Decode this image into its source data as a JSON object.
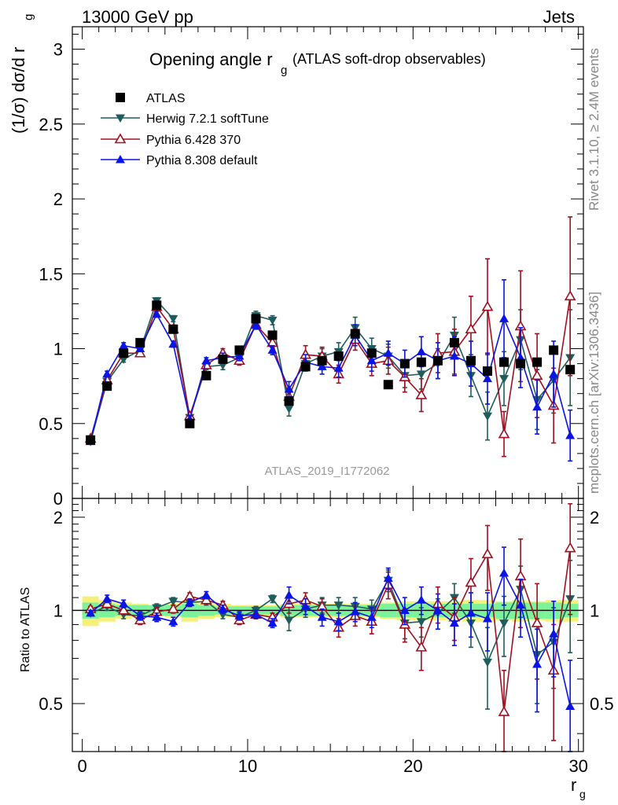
{
  "header": {
    "left_label": "13000 GeV pp",
    "right_label": "Jets"
  },
  "side_labels": {
    "rivet": "Rivet 3.1.10, ≥ 2.4M events",
    "mcplots": "mcplots.cern.ch [arXiv:1306.3436]"
  },
  "watermark": "ATLAS_2019_I1772062",
  "colors": {
    "atlas": "#000000",
    "herwig": "#1f5c5c",
    "pythia6": "#a01020",
    "pythia8": "#0a14e6",
    "band_inner": "#7cf29a",
    "band_outer": "#f6f07a"
  },
  "chart_data": [
    {
      "type": "scatter",
      "panel": "main",
      "title": "Opening angle r",
      "title_sub": "g",
      "title_note": "(ATLAS soft-drop observables)",
      "ylabel": "(1/σ) dσ/d r",
      "ylabel_sub": "g",
      "ylim": [
        0,
        3.15
      ],
      "xlim": [
        -0.6,
        30.3
      ],
      "y_ticks": [
        0,
        0.5,
        1,
        1.5,
        2,
        2.5,
        3
      ],
      "y_tick_labels": [
        "0",
        "0.5",
        "1",
        "1.5",
        "2",
        "2.5",
        "3"
      ],
      "legend_position": "top-left",
      "legend": [
        "ATLAS",
        "Herwig 7.2.1 softTune",
        "Pythia 6.428 370",
        "Pythia 8.308 default"
      ],
      "x": [
        0.5,
        1.5,
        2.5,
        3.5,
        4.5,
        5.5,
        6.5,
        7.5,
        8.5,
        9.5,
        10.5,
        11.5,
        12.5,
        13.5,
        14.5,
        15.5,
        16.5,
        17.5,
        18.5,
        19.5,
        20.5,
        21.5,
        22.5,
        23.5,
        24.5,
        25.5,
        26.5,
        27.5,
        28.5,
        29.5
      ],
      "series": [
        {
          "name": "ATLAS",
          "key": "atlas",
          "marker": "square",
          "values": [
            0.39,
            0.75,
            0.97,
            1.04,
            1.29,
            1.13,
            0.5,
            0.82,
            0.93,
            0.99,
            1.2,
            1.09,
            0.65,
            0.88,
            0.92,
            0.95,
            1.1,
            0.97,
            0.76,
            0.9,
            0.91,
            0.92,
            1.04,
            0.92,
            0.85,
            0.91,
            0.9,
            0.91,
            0.99,
            0.86
          ],
          "errors": [
            0.01,
            0.01,
            0.01,
            0.01,
            0.01,
            0.01,
            0.01,
            0.01,
            0.01,
            0.01,
            0.01,
            0.01,
            0.01,
            0.01,
            0.01,
            0.01,
            0.01,
            0.01,
            0.02,
            0.02,
            0.02,
            0.02,
            0.02,
            0.02,
            0.02,
            0.02,
            0.02,
            0.02,
            0.02,
            0.02
          ]
        },
        {
          "name": "Herwig 7.2.1 softTune",
          "key": "herwig",
          "marker": "triangle-down",
          "values": [
            0.38,
            0.78,
            0.93,
            0.99,
            1.32,
            1.2,
            0.54,
            0.88,
            0.89,
            0.94,
            1.22,
            1.19,
            0.6,
            0.9,
            0.95,
            0.98,
            1.14,
            1.0,
            0.95,
            0.82,
            0.83,
            0.9,
            1.09,
            0.82,
            0.55,
            0.8,
            1.06,
            0.66,
            0.79,
            0.94
          ],
          "errors": [
            0.01,
            0.02,
            0.02,
            0.02,
            0.02,
            0.02,
            0.02,
            0.02,
            0.03,
            0.03,
            0.03,
            0.03,
            0.05,
            0.05,
            0.05,
            0.06,
            0.07,
            0.07,
            0.08,
            0.08,
            0.1,
            0.1,
            0.12,
            0.14,
            0.16,
            0.18,
            0.2,
            0.2,
            0.22,
            0.32
          ]
        },
        {
          "name": "Pythia 6.428 370",
          "key": "pythia6",
          "marker": "triangle-up-open",
          "values": [
            0.4,
            0.79,
            0.97,
            0.97,
            1.28,
            1.13,
            0.55,
            0.89,
            0.97,
            0.92,
            1.16,
            1.04,
            0.68,
            0.96,
            0.95,
            0.83,
            1.06,
            0.9,
            0.92,
            0.81,
            0.69,
            0.97,
            0.98,
            1.13,
            1.28,
            0.43,
            1.15,
            0.82,
            0.62,
            1.35
          ],
          "errors": [
            0.01,
            0.02,
            0.02,
            0.02,
            0.02,
            0.02,
            0.02,
            0.02,
            0.03,
            0.03,
            0.03,
            0.03,
            0.05,
            0.06,
            0.06,
            0.06,
            0.07,
            0.08,
            0.09,
            0.1,
            0.11,
            0.13,
            0.15,
            0.22,
            0.32,
            0.15,
            0.37,
            0.28,
            0.25,
            0.53
          ]
        },
        {
          "name": "Pythia 8.308 default",
          "key": "pythia8",
          "marker": "triangle-up",
          "values": [
            0.38,
            0.83,
            1.02,
            1.0,
            1.23,
            1.03,
            0.53,
            0.92,
            0.94,
            0.95,
            1.16,
            0.99,
            0.73,
            0.91,
            0.88,
            0.87,
            1.09,
            0.92,
            0.97,
            0.9,
            0.98,
            0.92,
            0.95,
            0.9,
            0.8,
            1.2,
            0.94,
            0.61,
            0.83,
            0.42
          ],
          "errors": [
            0.01,
            0.02,
            0.02,
            0.02,
            0.02,
            0.02,
            0.02,
            0.02,
            0.03,
            0.03,
            0.03,
            0.03,
            0.05,
            0.05,
            0.05,
            0.06,
            0.07,
            0.07,
            0.08,
            0.09,
            0.1,
            0.12,
            0.13,
            0.15,
            0.17,
            0.26,
            0.2,
            0.18,
            0.22,
            0.17
          ]
        }
      ]
    },
    {
      "type": "scatter",
      "panel": "ratio",
      "ylabel": "Ratio to ATLAS",
      "xlabel": "r",
      "xlabel_sub": "g",
      "ylim": [
        0.35,
        2.3
      ],
      "xlim": [
        -0.6,
        30.3
      ],
      "y_ticks": [
        0.5,
        1,
        2
      ],
      "y_tick_labels": [
        "0.5",
        "1",
        "2"
      ],
      "x_ticks": [
        0,
        10,
        20,
        30
      ],
      "x_tick_labels": [
        "0",
        "10",
        "20",
        "30"
      ],
      "x": [
        0.5,
        1.5,
        2.5,
        3.5,
        4.5,
        5.5,
        6.5,
        7.5,
        8.5,
        9.5,
        10.5,
        11.5,
        12.5,
        13.5,
        14.5,
        15.5,
        16.5,
        17.5,
        18.5,
        19.5,
        20.5,
        21.5,
        22.5,
        23.5,
        24.5,
        25.5,
        26.5,
        27.5,
        28.5,
        29.5
      ],
      "band_inner": [
        0.06,
        0.05,
        0.04,
        0.04,
        0.04,
        0.04,
        0.05,
        0.04,
        0.03,
        0.03,
        0.03,
        0.03,
        0.04,
        0.04,
        0.04,
        0.04,
        0.04,
        0.04,
        0.05,
        0.05,
        0.05,
        0.05,
        0.05,
        0.05,
        0.05,
        0.06,
        0.06,
        0.06,
        0.06,
        0.05
      ],
      "band_outer": [
        0.11,
        0.08,
        0.06,
        0.05,
        0.04,
        0.05,
        0.08,
        0.06,
        0.05,
        0.04,
        0.04,
        0.04,
        0.05,
        0.05,
        0.05,
        0.05,
        0.05,
        0.05,
        0.06,
        0.07,
        0.07,
        0.07,
        0.07,
        0.08,
        0.08,
        0.07,
        0.08,
        0.07,
        0.08,
        0.08
      ],
      "series": [
        {
          "name": "Herwig 7.2.1 softTune",
          "key": "herwig",
          "marker": "triangle-down",
          "values": [
            0.98,
            1.03,
            0.97,
            0.96,
            1.02,
            1.07,
            1.06,
            1.07,
            0.97,
            0.95,
            1.0,
            1.09,
            0.93,
            1.01,
            1.04,
            1.04,
            1.03,
            1.01,
            1.25,
            0.91,
            0.92,
            0.98,
            1.1,
            0.91,
            0.68,
            0.91,
            1.17,
            0.72,
            0.79,
            1.09
          ],
          "errors": [
            0.02,
            0.03,
            0.03,
            0.03,
            0.03,
            0.03,
            0.03,
            0.03,
            0.03,
            0.03,
            0.03,
            0.03,
            0.07,
            0.06,
            0.06,
            0.06,
            0.07,
            0.07,
            0.1,
            0.1,
            0.1,
            0.11,
            0.12,
            0.15,
            0.2,
            0.2,
            0.22,
            0.22,
            0.23,
            0.36
          ]
        },
        {
          "name": "Pythia 6.428 370",
          "key": "pythia6",
          "marker": "triangle-up-open",
          "values": [
            1.01,
            1.05,
            1.0,
            0.93,
            0.99,
            1.01,
            1.11,
            1.08,
            1.04,
            0.93,
            0.97,
            0.95,
            1.05,
            1.08,
            1.03,
            0.88,
            0.96,
            0.92,
            1.21,
            0.9,
            0.76,
            1.05,
            0.95,
            1.23,
            1.52,
            0.47,
            1.29,
            0.91,
            0.64,
            1.59
          ],
          "errors": [
            0.02,
            0.03,
            0.03,
            0.03,
            0.03,
            0.03,
            0.03,
            0.03,
            0.03,
            0.03,
            0.03,
            0.03,
            0.07,
            0.06,
            0.06,
            0.06,
            0.07,
            0.08,
            0.12,
            0.11,
            0.12,
            0.14,
            0.15,
            0.24,
            0.36,
            0.17,
            0.41,
            0.31,
            0.26,
            0.62
          ]
        },
        {
          "name": "Pythia 8.308 default",
          "key": "pythia8",
          "marker": "triangle-up",
          "values": [
            0.98,
            1.09,
            1.05,
            0.96,
            0.95,
            0.92,
            1.06,
            1.12,
            1.01,
            0.96,
            0.97,
            0.91,
            1.12,
            1.03,
            0.95,
            0.92,
            0.99,
            0.95,
            1.27,
            1.0,
            1.08,
            1.0,
            0.91,
            0.98,
            0.94,
            1.32,
            1.04,
            0.67,
            0.84,
            0.49
          ],
          "errors": [
            0.02,
            0.03,
            0.03,
            0.03,
            0.03,
            0.03,
            0.03,
            0.03,
            0.03,
            0.03,
            0.03,
            0.03,
            0.07,
            0.06,
            0.06,
            0.06,
            0.07,
            0.07,
            0.1,
            0.1,
            0.11,
            0.13,
            0.14,
            0.16,
            0.2,
            0.28,
            0.22,
            0.2,
            0.23,
            0.2
          ]
        }
      ]
    }
  ]
}
